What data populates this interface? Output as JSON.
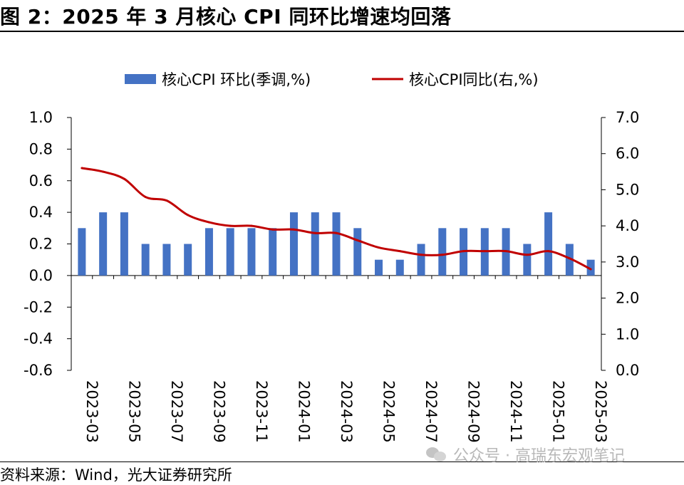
{
  "title": "图 2：2025 年 3 月核心 CPI 同环比增速均回落",
  "source": "资料来源：Wind，光大证券研究所",
  "watermark": "公众号 · 高瑞东宏观笔记",
  "watermark_icon": "wechat-icon",
  "colors": {
    "bar": "#4472C4",
    "line": "#C00000"
  },
  "chart_data": {
    "type": "bar",
    "categories": [
      "2023-03",
      "2023-04",
      "2023-05",
      "2023-06",
      "2023-07",
      "2023-08",
      "2023-09",
      "2023-10",
      "2023-11",
      "2023-12",
      "2024-01",
      "2024-02",
      "2024-03",
      "2024-04",
      "2024-05",
      "2024-06",
      "2024-07",
      "2024-08",
      "2024-09",
      "2024-10",
      "2024-11",
      "2024-12",
      "2025-01",
      "2025-02",
      "2025-03"
    ],
    "tick_labels": [
      "2023-03",
      "2023-05",
      "2023-07",
      "2023-09",
      "2023-11",
      "2024-01",
      "2024-03",
      "2024-05",
      "2024-07",
      "2024-09",
      "2024-11",
      "2025-01",
      "2025-03"
    ],
    "series": [
      {
        "name": "核心CPI 环比(季调,%)",
        "type": "bar",
        "axis": "left",
        "values": [
          0.3,
          0.4,
          0.4,
          0.2,
          0.2,
          0.2,
          0.3,
          0.3,
          0.3,
          0.3,
          0.4,
          0.4,
          0.4,
          0.3,
          0.1,
          0.1,
          0.2,
          0.3,
          0.3,
          0.3,
          0.3,
          0.2,
          0.4,
          0.2,
          0.1
        ]
      },
      {
        "name": "核心CPI同比(右,%)",
        "type": "line",
        "axis": "right",
        "values": [
          5.6,
          5.5,
          5.3,
          4.8,
          4.7,
          4.3,
          4.1,
          4.0,
          4.0,
          3.9,
          3.9,
          3.8,
          3.8,
          3.6,
          3.4,
          3.3,
          3.2,
          3.2,
          3.3,
          3.3,
          3.3,
          3.2,
          3.3,
          3.1,
          2.8
        ]
      }
    ],
    "y_left": {
      "min": -0.6,
      "max": 1.0,
      "ticks": [
        "1.0",
        "0.8",
        "0.6",
        "0.4",
        "0.2",
        "0.0",
        "-0.2",
        "-0.4",
        "-0.6"
      ]
    },
    "y_right": {
      "min": 0.0,
      "max": 7.0,
      "ticks": [
        "7.0",
        "6.0",
        "5.0",
        "4.0",
        "3.0",
        "2.0",
        "1.0",
        "0.0"
      ]
    },
    "grid": false,
    "legend_position": "top"
  }
}
